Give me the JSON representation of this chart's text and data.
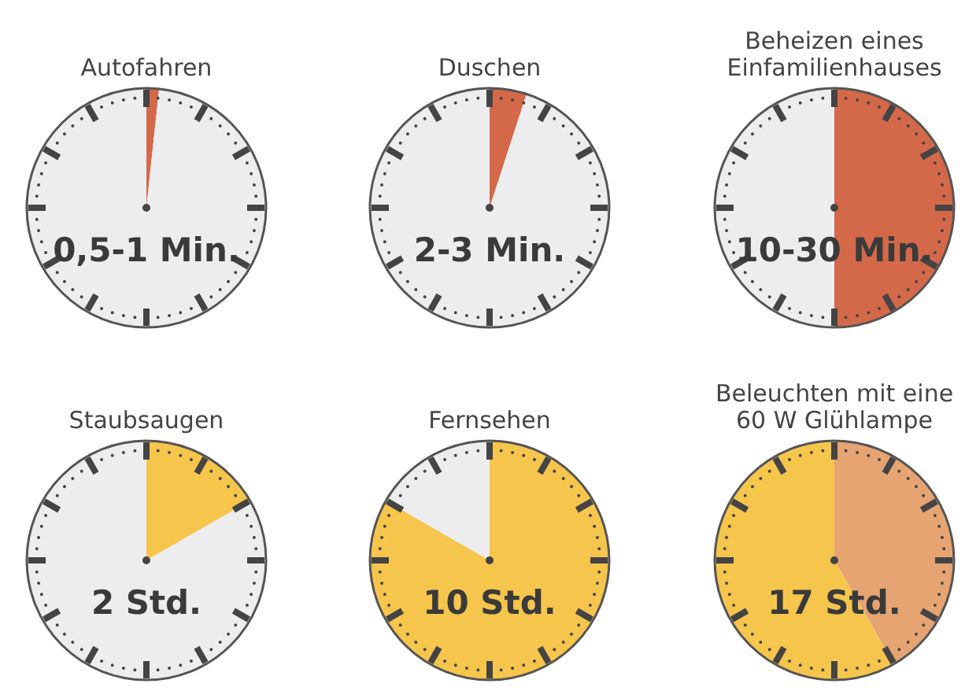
{
  "chart_data": [
    {
      "type": "pie",
      "title": "Autofahren",
      "categories": [
        null,
        null
      ],
      "values": [
        1.7,
        98.3
      ],
      "colors": [
        "#d4694a",
        "#ededf0"
      ],
      "annotations": [
        "0,5-1 Min."
      ]
    },
    {
      "type": "pie",
      "title": "Duschen",
      "categories": [
        null,
        null
      ],
      "values": [
        5,
        95
      ],
      "colors": [
        "#d4694a",
        "#ededf0"
      ],
      "annotations": [
        "2-3 Min."
      ]
    },
    {
      "type": "pie",
      "title": "Beheizen eines Einfamilienhauses",
      "categories": [
        null,
        null
      ],
      "values": [
        50,
        50
      ],
      "colors": [
        "#d4694a",
        "#ededf0"
      ],
      "annotations": [
        "10-30 Min."
      ]
    },
    {
      "type": "pie",
      "title": "Staubsaugen",
      "categories": [
        null,
        null
      ],
      "values": [
        16.7,
        83.3
      ],
      "colors": [
        "#f5c54c",
        "#ededf0"
      ],
      "annotations": [
        "2 Std."
      ]
    },
    {
      "type": "pie",
      "title": "Fernsehen",
      "categories": [
        null,
        null
      ],
      "values": [
        83.3,
        16.7
      ],
      "colors": [
        "#f5c54c",
        "#ededf0"
      ],
      "annotations": [
        "10 Std."
      ]
    },
    {
      "type": "pie",
      "title": "Beleuchten mit eine 60 W Glühlampe",
      "categories": [
        null,
        null
      ],
      "values": [
        41.7,
        58.3
      ],
      "colors": [
        "#e6a473",
        "#f5c54c"
      ],
      "annotations": [
        "17 Std."
      ]
    }
  ]
}
